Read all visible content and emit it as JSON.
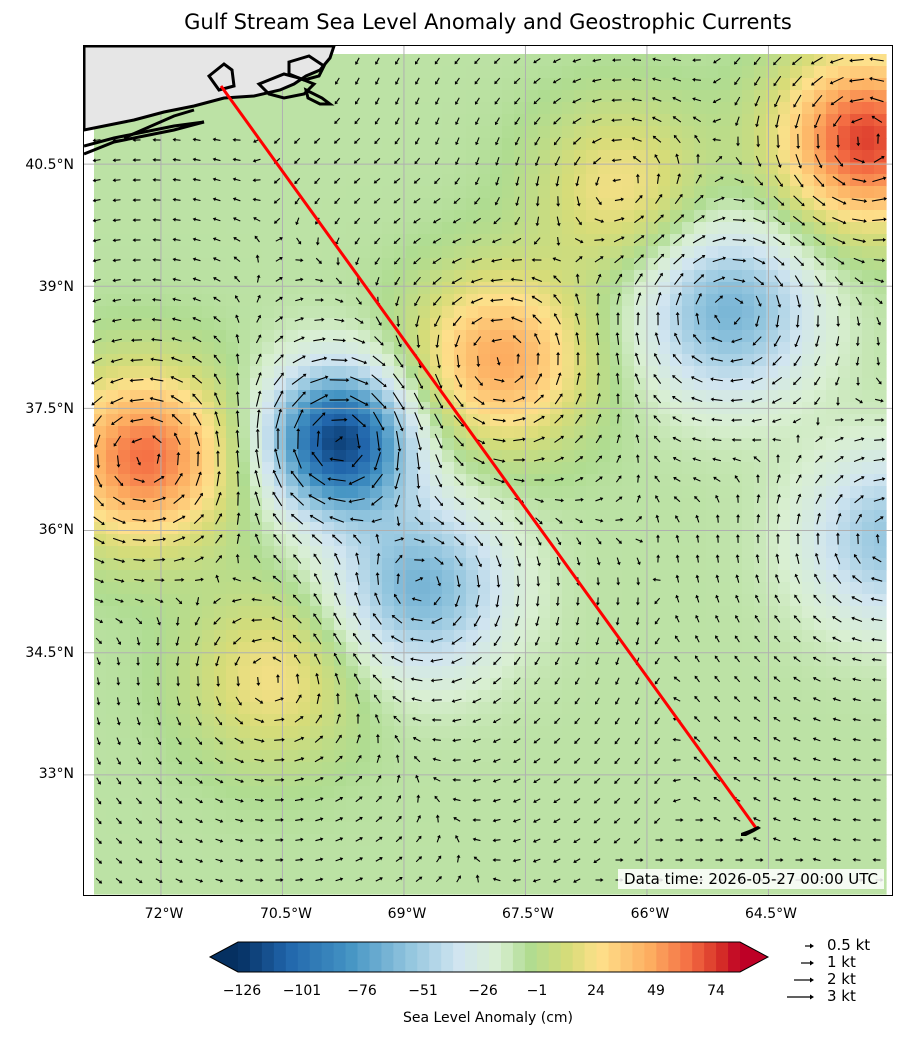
{
  "title": "Gulf Stream Sea Level Anomaly and Geostrophic Currents",
  "data_time": "Data time: 2026-05-27 00:00 UTC",
  "lat_ticks": [
    "40.5°N",
    "39°N",
    "37.5°N",
    "36°N",
    "34.5°N",
    "33°N"
  ],
  "lon_ticks": [
    "72°W",
    "70.5°W",
    "69°W",
    "67.5°W",
    "66°W",
    "64.5°W"
  ],
  "colorbar": {
    "label": "Sea Level Anomaly (cm)",
    "ticks": [
      "−126",
      "−101",
      "−76",
      "−51",
      "−26",
      "−1",
      "24",
      "49",
      "74"
    ],
    "colormap": "RdYlBu_r",
    "range": [
      -126,
      84
    ]
  },
  "quiver_key": [
    "0.5 kt",
    "1 kt",
    "2 kt",
    "3 kt"
  ],
  "track_line_color": "#ff0000",
  "land_color": "#e6e6e6",
  "anomaly_features": [
    {
      "kind": "warm",
      "lon": -72.2,
      "lat": 36.9,
      "amplitude_cm": 70
    },
    {
      "kind": "warm",
      "lon": -67.8,
      "lat": 38.1,
      "amplitude_cm": 55
    },
    {
      "kind": "warm",
      "lon": -63.3,
      "lat": 40.8,
      "amplitude_cm": 80
    },
    {
      "kind": "warm",
      "lon": -70.6,
      "lat": 34.2,
      "amplitude_cm": 30
    },
    {
      "kind": "warm",
      "lon": -66.3,
      "lat": 40.2,
      "amplitude_cm": 30
    },
    {
      "kind": "cold",
      "lon": -69.8,
      "lat": 37.1,
      "amplitude_cm": -110
    },
    {
      "kind": "cold",
      "lon": -65.0,
      "lat": 38.7,
      "amplitude_cm": -55
    },
    {
      "kind": "cold",
      "lon": -68.8,
      "lat": 35.3,
      "amplitude_cm": -55
    },
    {
      "kind": "cold",
      "lon": -63.0,
      "lat": 35.9,
      "amplitude_cm": -45
    }
  ]
}
